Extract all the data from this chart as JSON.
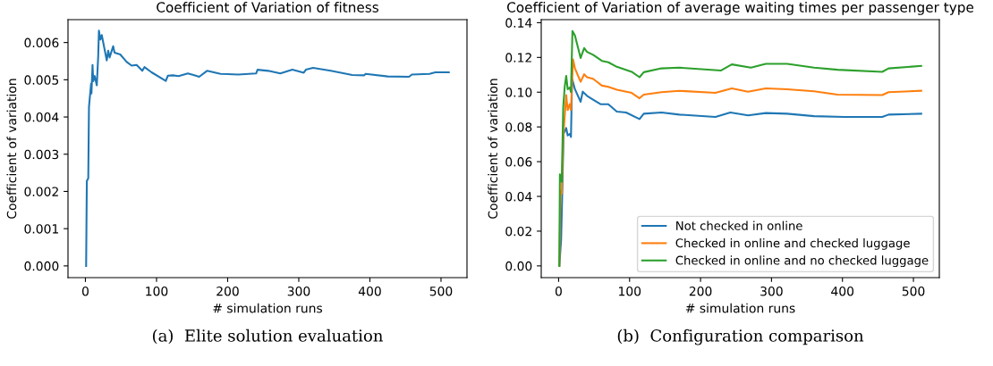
{
  "chart_data": [
    {
      "type": "line",
      "title": "Coefficient of Variation of fitness",
      "xlabel": "# simulation runs",
      "ylabel": "Coefficient of variation",
      "annotations": [
        "(a)  Elite solution evaluation"
      ],
      "xlim": [
        -24.5,
        536.5
      ],
      "xticks": [
        0,
        100,
        200,
        300,
        400,
        500
      ],
      "ylim": [
        -0.000315,
        0.006615
      ],
      "yticks": [
        {
          "value": 0,
          "label": "0.000"
        },
        {
          "value": 0.001,
          "label": "0.001"
        },
        {
          "value": 0.002,
          "label": "0.002"
        },
        {
          "value": 0.003,
          "label": "0.003"
        },
        {
          "value": 0.004,
          "label": "0.004"
        },
        {
          "value": 0.005,
          "label": "0.005"
        },
        {
          "value": 0.006,
          "label": "0.006"
        }
      ],
      "grid": false,
      "legend": false,
      "series": [
        {
          "color": "#1f77b4",
          "x": [
            1,
            2,
            4,
            5,
            8,
            8.5,
            10,
            11,
            13,
            16,
            18,
            19,
            21,
            23,
            30,
            32,
            34,
            39,
            41,
            49,
            58,
            65,
            72,
            80,
            83,
            93,
            113,
            116,
            123,
            131,
            144,
            152,
            160,
            171,
            190,
            215,
            240,
            242,
            257,
            274,
            291,
            307,
            310,
            320,
            345,
            375,
            392,
            394,
            425,
            455,
            459,
            484,
            492,
            509,
            511
          ],
          "values": [
            0,
            0.00228,
            0.00235,
            0.00427,
            0.0049,
            0.00463,
            0.0054,
            0.00496,
            0.0051,
            0.00485,
            0.00564,
            0.00632,
            0.00608,
            0.0062,
            0.00552,
            0.00578,
            0.0056,
            0.0059,
            0.00573,
            0.00568,
            0.00548,
            0.00538,
            0.0054,
            0.00524,
            0.00534,
            0.0052,
            0.00497,
            0.00511,
            0.00512,
            0.0051,
            0.00517,
            0.00513,
            0.00508,
            0.00524,
            0.00516,
            0.00514,
            0.00517,
            0.00527,
            0.00524,
            0.00517,
            0.00527,
            0.00519,
            0.00527,
            0.00532,
            0.00524,
            0.00513,
            0.00512,
            0.00516,
            0.00509,
            0.00508,
            0.00514,
            0.00516,
            0.0052,
            0.0052,
            0.0052
          ]
        }
      ]
    },
    {
      "type": "line",
      "title": "Coefficient of Variation of average waiting times per passenger type",
      "xlabel": "# simulation runs",
      "ylabel": "Coefficient of variation",
      "annotations": [
        "(b)  Configuration comparison"
      ],
      "xlim": [
        -24.5,
        536.5
      ],
      "xticks": [
        0,
        100,
        200,
        300,
        400,
        500
      ],
      "ylim": [
        -0.00675,
        0.14175
      ],
      "yticks": [
        {
          "value": 0,
          "label": "0.00"
        },
        {
          "value": 0.02,
          "label": "0.02"
        },
        {
          "value": 0.04,
          "label": "0.04"
        },
        {
          "value": 0.06,
          "label": "0.06"
        },
        {
          "value": 0.08,
          "label": "0.08"
        },
        {
          "value": 0.1,
          "label": "0.10"
        },
        {
          "value": 0.12,
          "label": "0.12"
        },
        {
          "value": 0.14,
          "label": "0.14"
        }
      ],
      "grid": false,
      "legend": "bottom right",
      "series": [
        {
          "name": "Not checked in online",
          "color": "#1f77b4",
          "x": [
            1,
            3.5,
            5,
            7,
            10.7,
            12.8,
            15.7,
            17.4,
            19,
            23,
            31,
            34,
            40,
            48.5,
            59,
            70,
            82,
            95,
            114,
            120,
            145,
            170,
            221,
            242,
            267,
            292,
            322,
            360,
            402,
            456,
            465,
            511
          ],
          "values": [
            0,
            0.0149,
            0.0399,
            0.0759,
            0.0794,
            0.0751,
            0.0759,
            0.0742,
            0.1077,
            0.1017,
            0.0945,
            0.1003,
            0.0979,
            0.0957,
            0.0931,
            0.0931,
            0.0888,
            0.0883,
            0.0845,
            0.0876,
            0.0883,
            0.0871,
            0.0857,
            0.0883,
            0.0866,
            0.088,
            0.0876,
            0.0862,
            0.0857,
            0.0857,
            0.0871,
            0.0876
          ]
        },
        {
          "name": "Checked in online and checked luggage",
          "color": "#ff7f0e",
          "x": [
            1,
            2.7,
            4.4,
            6.5,
            10.7,
            12.8,
            15.7,
            17.4,
            20.3,
            23,
            31,
            36,
            40,
            48.5,
            61,
            70,
            82,
            103,
            114,
            120,
            145,
            170,
            221,
            244,
            267,
            292,
            322,
            360,
            393,
            456,
            465,
            511
          ],
          "values": [
            0,
            0.0433,
            0.0416,
            0.0742,
            0.0983,
            0.0897,
            0.0931,
            0.0897,
            0.1189,
            0.1137,
            0.106,
            0.1103,
            0.1086,
            0.1077,
            0.1038,
            0.1031,
            0.1014,
            0.0996,
            0.0965,
            0.0986,
            0.1,
            0.1008,
            0.0996,
            0.1022,
            0.1003,
            0.1022,
            0.1017,
            0.1005,
            0.0986,
            0.0983,
            0.1,
            0.1008
          ]
        },
        {
          "name": "Checked in online and no checked luggage",
          "color": "#2ca02c",
          "x": [
            1,
            1.8,
            4.4,
            6.5,
            8.6,
            10.7,
            12.8,
            15.7,
            17.4,
            19.5,
            23,
            31,
            36,
            40,
            48.5,
            61,
            70,
            82,
            103,
            114,
            120,
            145,
            170,
            229,
            244,
            271,
            292,
            322,
            360,
            393,
            456,
            465,
            511
          ],
          "values": [
            0,
            0.0527,
            0.0484,
            0.0914,
            0.1031,
            0.1094,
            0.1017,
            0.1026,
            0.1,
            0.1352,
            0.1326,
            0.1197,
            0.1254,
            0.1232,
            0.1215,
            0.118,
            0.1172,
            0.1146,
            0.1117,
            0.1086,
            0.1115,
            0.1137,
            0.1141,
            0.1125,
            0.116,
            0.1141,
            0.1163,
            0.1163,
            0.1141,
            0.1129,
            0.1117,
            0.1137,
            0.1151
          ]
        }
      ]
    }
  ]
}
